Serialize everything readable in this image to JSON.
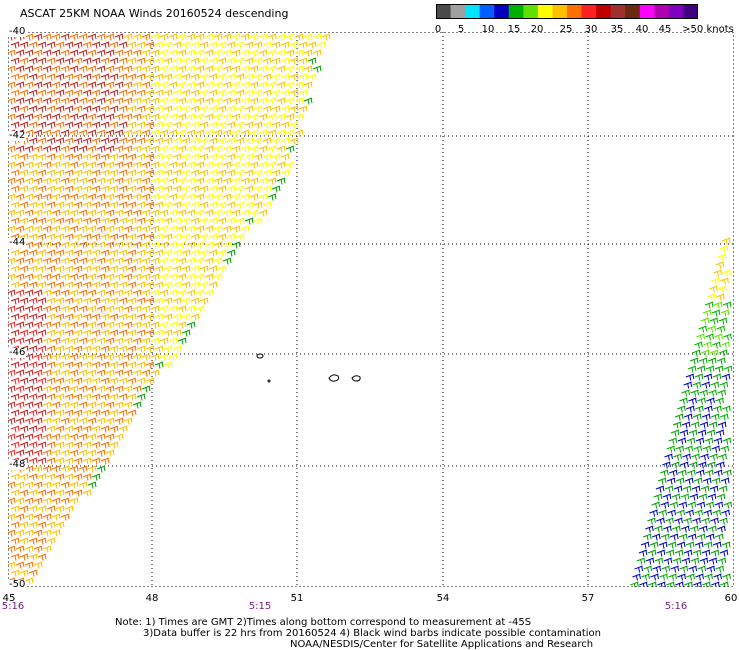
{
  "title": "ASCAT 25KM NOAA Winds 20160524 descending",
  "colorbar": {
    "colors": [
      "#4a4a4a",
      "#a0a0a0",
      "#00e5ff",
      "#0060ff",
      "#0000c0",
      "#00b000",
      "#60e000",
      "#ffff00",
      "#ffc000",
      "#ff7000",
      "#ff2020",
      "#c00000",
      "#a03030",
      "#6a2a10",
      "#ff00ff",
      "#b000b0",
      "#8000c0",
      "#400080"
    ],
    "labels": [
      "0",
      "5",
      "10",
      "15",
      "20",
      "25",
      "30",
      "35",
      "40",
      "45",
      ">50 knots"
    ]
  },
  "axes": {
    "y_labels": [
      "-40",
      "-42",
      "-44",
      "-46",
      "-48",
      "-50"
    ],
    "x_labels": [
      "45",
      "48",
      "51",
      "54",
      "57",
      "60"
    ]
  },
  "times": [
    "5:16",
    "5:15",
    "5:16"
  ],
  "notes": [
    "Note: 1) Times are GMT 2)Times along bottom correspond to measurement at -45S",
    "3)Data buffer is 22 hrs from 20160524 4) Black wind barbs indicate possible contamination",
    "NOAA/NESDIS/Center for Satellite Applications and Research"
  ]
}
